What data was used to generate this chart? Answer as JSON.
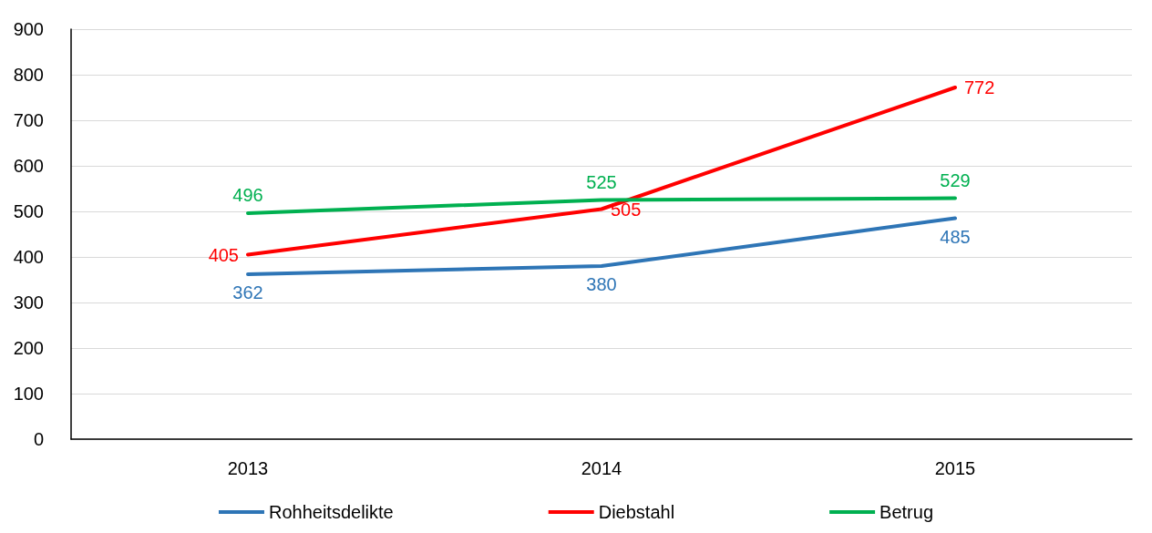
{
  "chart_data": {
    "type": "line",
    "categories": [
      "2013",
      "2014",
      "2015"
    ],
    "series": [
      {
        "name": "Rohheitsdelikte",
        "color": "#2e75b6",
        "values": [
          362,
          380,
          485
        ]
      },
      {
        "name": "Diebstahl",
        "color": "#ff0000",
        "values": [
          405,
          505,
          772
        ]
      },
      {
        "name": "Betrug",
        "color": "#00b050",
        "values": [
          496,
          525,
          529
        ]
      }
    ],
    "ylim": [
      0,
      900
    ],
    "yticks": [
      0,
      100,
      200,
      300,
      400,
      500,
      600,
      700,
      800,
      900
    ],
    "grid": "y",
    "legend": "bottom",
    "data_labels": true,
    "marker": "none",
    "line_style": "solid"
  }
}
